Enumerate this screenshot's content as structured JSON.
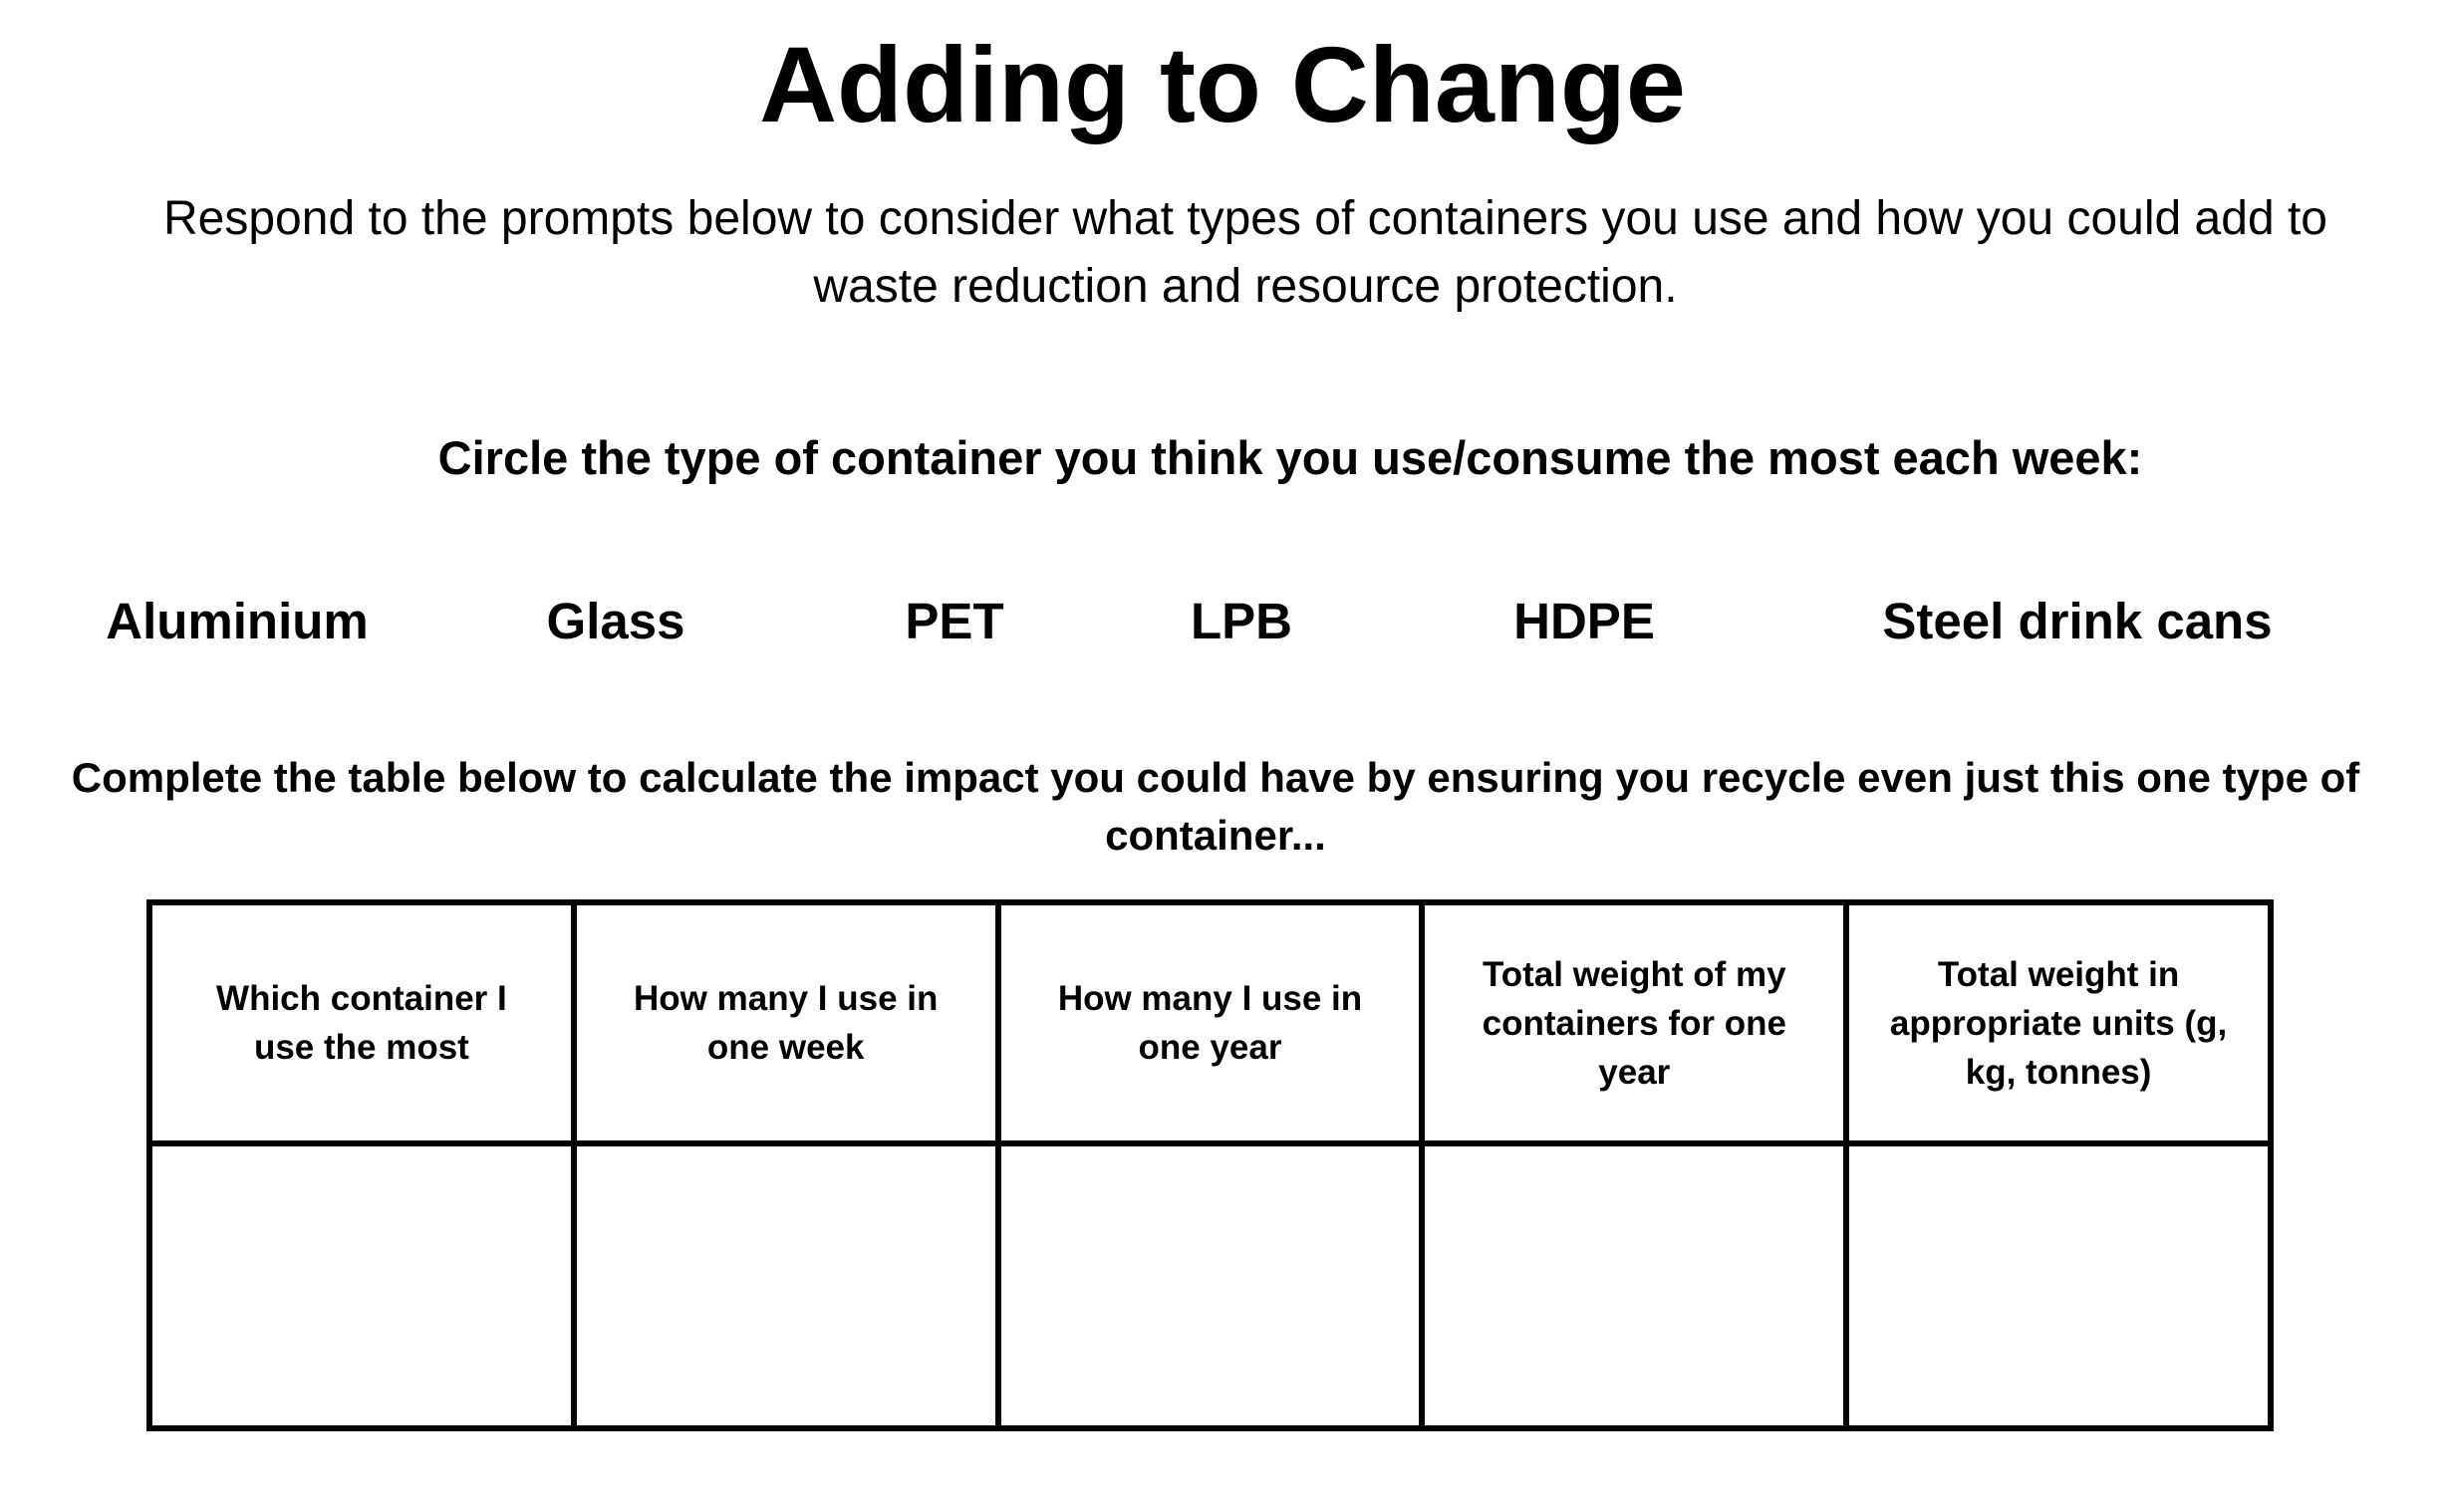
{
  "title": "Adding to Change",
  "intro": "Respond to the prompts below to consider what types of containers you use and how you could add to waste reduction and resource protection.",
  "prompt": "Circle the type of container you think you use/consume the most each week:",
  "options": [
    "Aluminium",
    "Glass",
    "PET",
    "LPB",
    "HDPE",
    "Steel drink cans"
  ],
  "table_prompt": "Complete the table below to calculate the impact you could have by ensuring you recycle even just this one type of container...",
  "table": {
    "headers": [
      "Which container I use the most",
      "How many I use in one week",
      "How many I use in one year",
      "Total weight of my containers for one year",
      "Total weight in appropriate units (g, kg, tonnes)"
    ]
  }
}
